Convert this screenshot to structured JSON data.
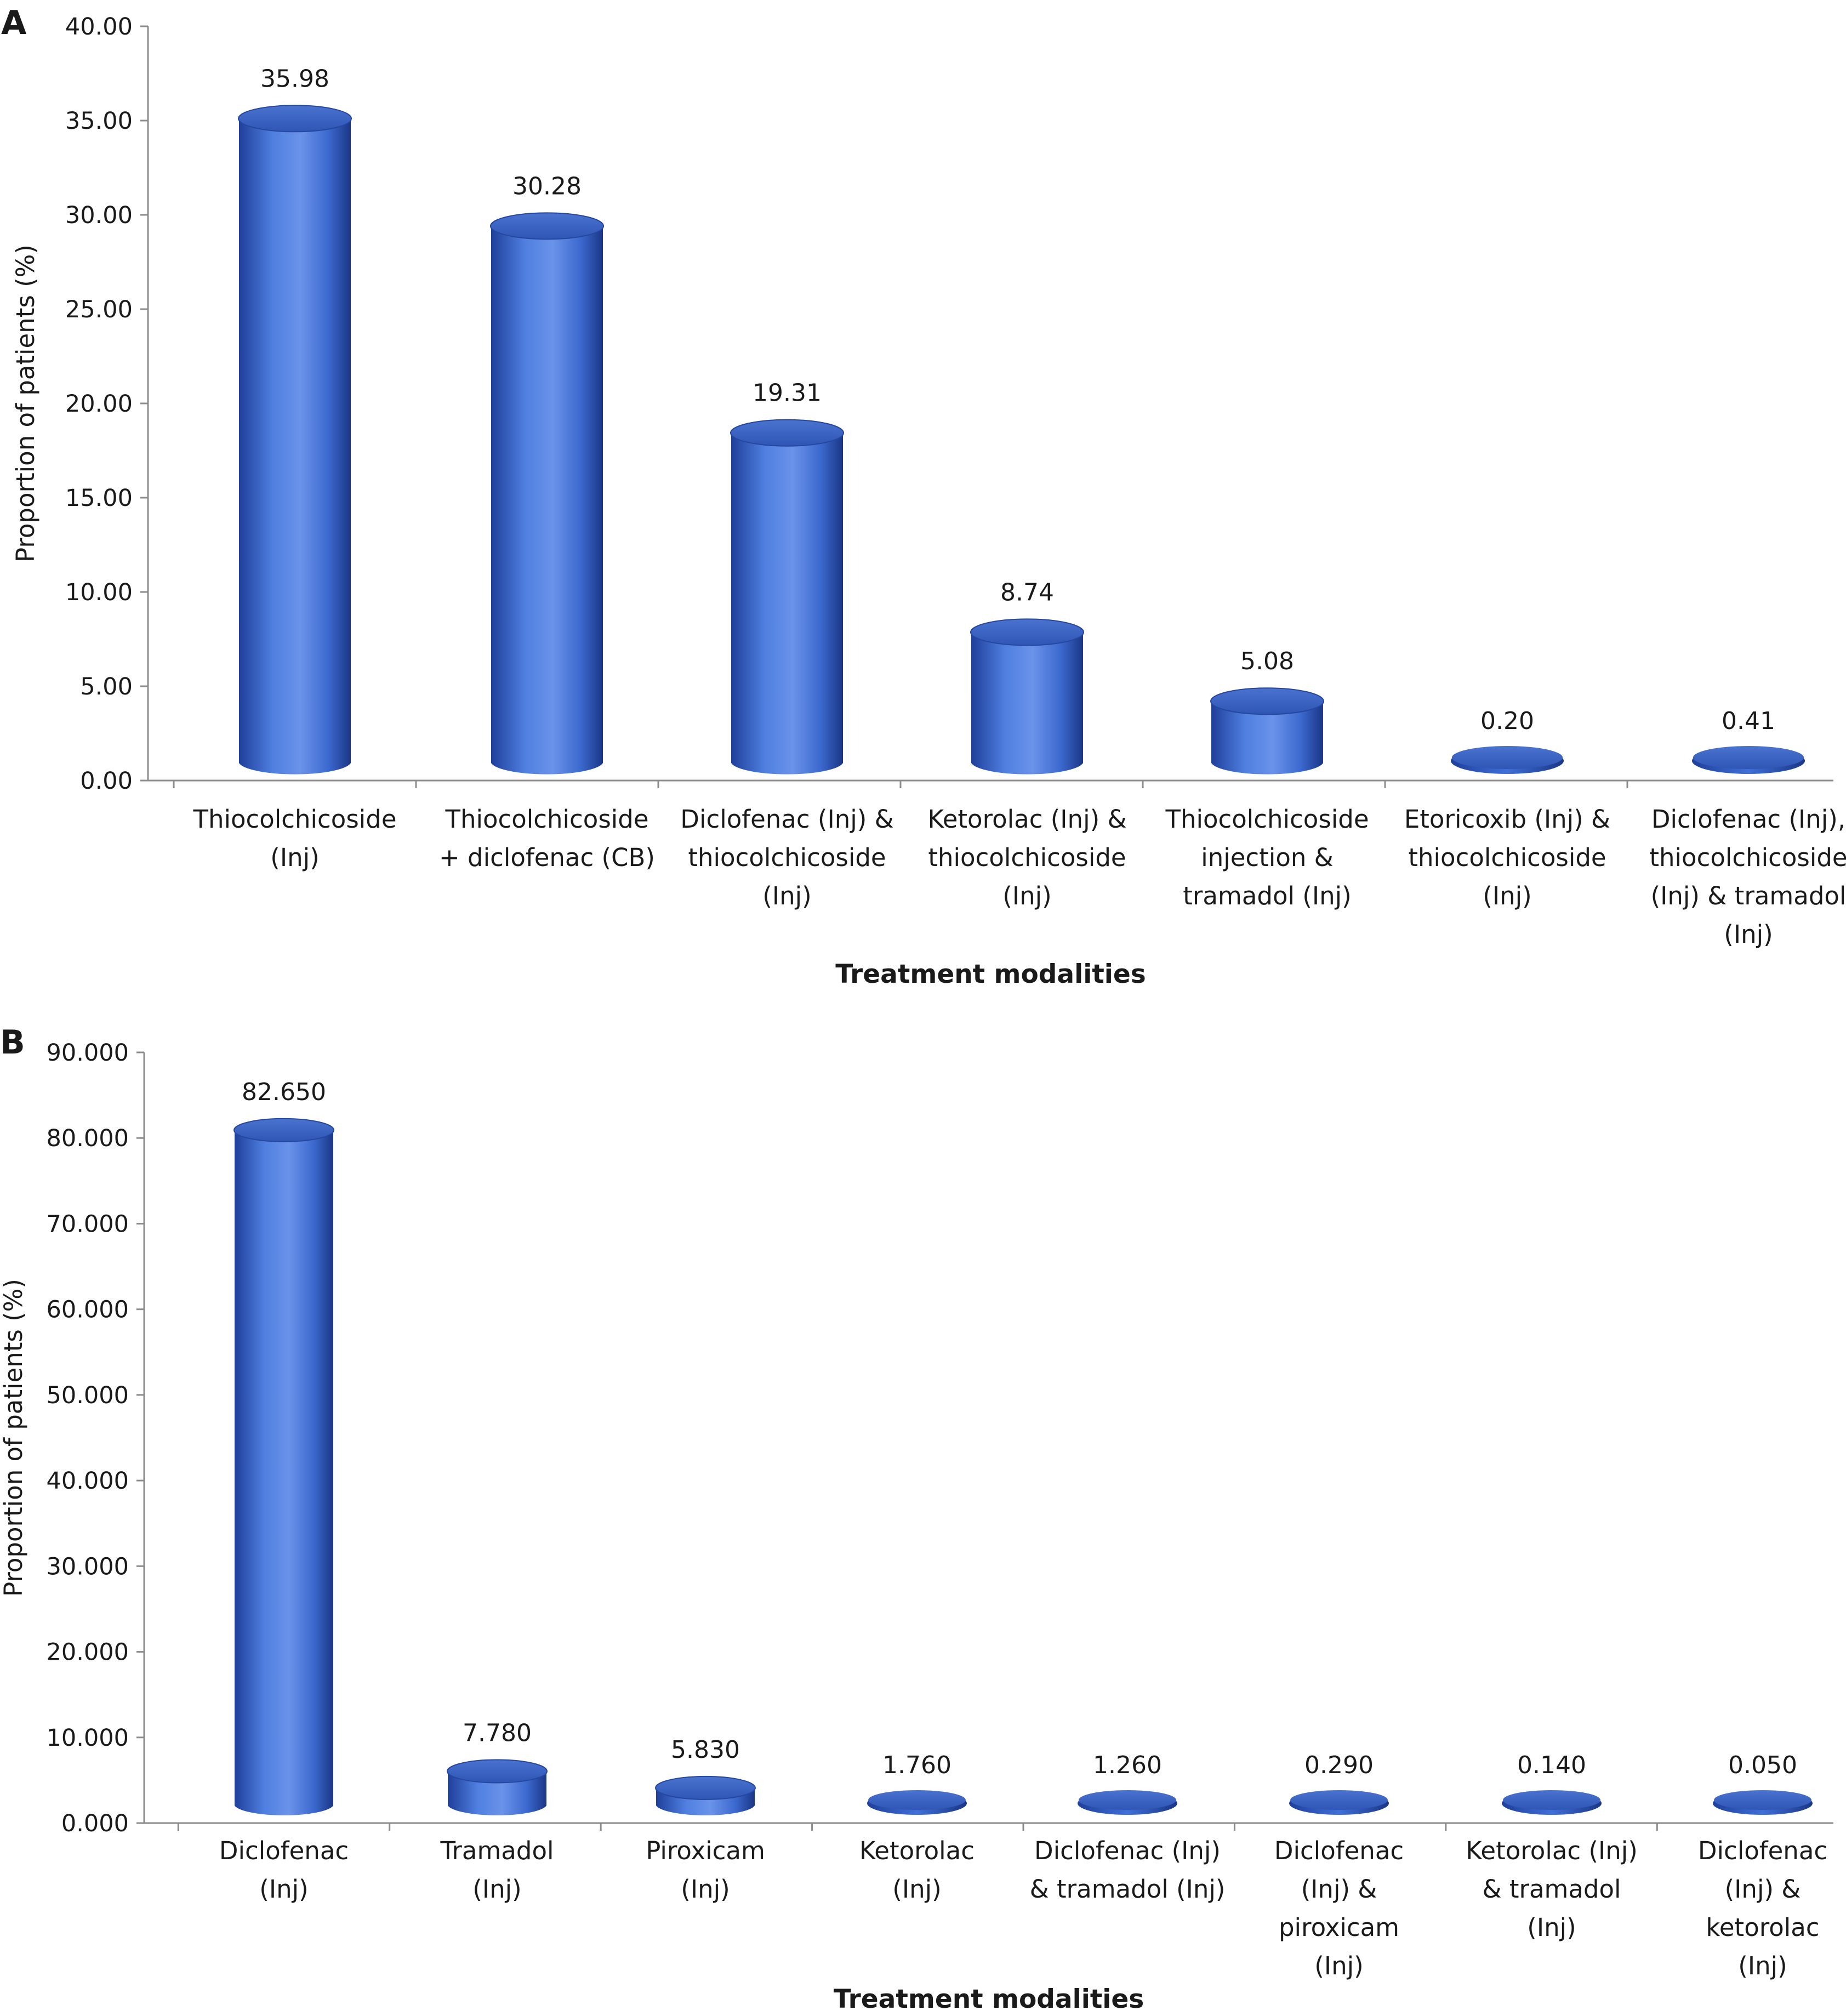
{
  "chart_data": [
    {
      "type": "bar",
      "panel_label": "A",
      "ylabel": "Proportion of patients (%)",
      "xlabel": "Treatment modalities",
      "ylim": [
        0,
        40
      ],
      "yticks": [
        "0.00",
        "5.00",
        "10.00",
        "15.00",
        "20.00",
        "25.00",
        "30.00",
        "35.00",
        "40.00"
      ],
      "categories": [
        [
          "Thiocolchicoside",
          "(Inj)"
        ],
        [
          "Thiocolchicoside",
          "+ diclofenac (CB)"
        ],
        [
          "Diclofenac (Inj) &",
          "thiocolchicoside",
          "(Inj)"
        ],
        [
          "Ketorolac (Inj) &",
          "thiocolchicoside",
          "(Inj)"
        ],
        [
          "Thiocolchicoside",
          "injection &",
          "tramadol (Inj)"
        ],
        [
          "Etoricoxib (Inj) &",
          "thiocolchicoside",
          "(Inj)"
        ],
        [
          "Diclofenac (Inj),",
          "thiocolchicoside",
          "(Inj) & tramadol",
          "(Inj)"
        ]
      ],
      "values": [
        35.98,
        30.28,
        19.31,
        8.74,
        5.08,
        0.2,
        0.41
      ],
      "value_labels": [
        "35.98",
        "30.28",
        "19.31",
        "8.74",
        "5.08",
        "0.20",
        "0.41"
      ],
      "grid": false,
      "bar_color": "#3e6fd6"
    },
    {
      "type": "bar",
      "panel_label": "B",
      "ylabel": "Proportion of patients (%)",
      "xlabel": "Treatment modalities",
      "ylim": [
        0,
        90
      ],
      "yticks": [
        "0.000",
        "10.000",
        "20.000",
        "30.000",
        "40.000",
        "50.000",
        "60.000",
        "70.000",
        "80.000",
        "90.000"
      ],
      "categories": [
        [
          "Diclofenac",
          "(Inj)"
        ],
        [
          "Tramadol",
          "(Inj)"
        ],
        [
          "Piroxicam",
          "(Inj)"
        ],
        [
          "Ketorolac",
          "(Inj)"
        ],
        [
          "Diclofenac (Inj)",
          "& tramadol (Inj)"
        ],
        [
          "Diclofenac",
          "(Inj) &",
          "piroxicam",
          "(Inj)"
        ],
        [
          "Ketorolac (Inj)",
          "& tramadol",
          "(Inj)"
        ],
        [
          "Diclofenac",
          "(Inj) &",
          "ketorolac",
          "(Inj)"
        ]
      ],
      "values": [
        82.65,
        7.78,
        5.83,
        1.76,
        1.26,
        0.29,
        0.14,
        0.05
      ],
      "value_labels": [
        "82.650",
        "7.780",
        "5.830",
        "1.760",
        "1.260",
        "0.290",
        "0.140",
        "0.050"
      ],
      "grid": false,
      "bar_color": "#3e6fd6"
    }
  ]
}
